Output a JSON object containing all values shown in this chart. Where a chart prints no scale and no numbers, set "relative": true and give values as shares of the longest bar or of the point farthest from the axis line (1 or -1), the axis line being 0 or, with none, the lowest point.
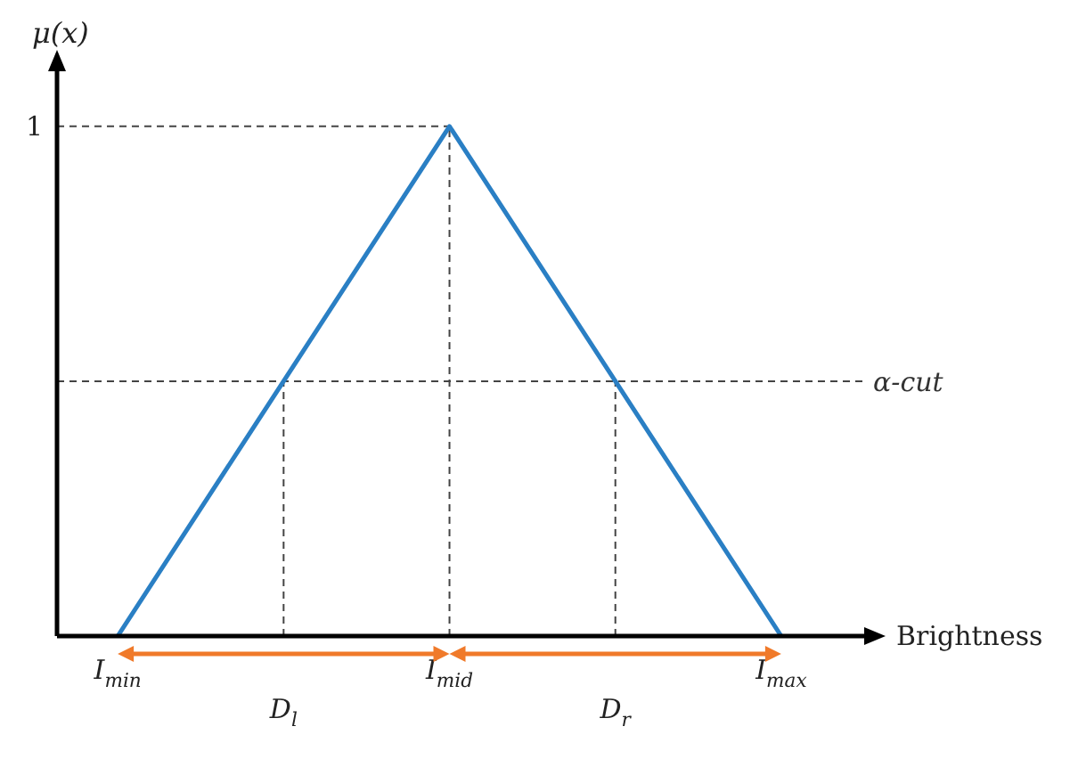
{
  "chart_data": {
    "type": "line",
    "relative": true,
    "xlabel": "Brightness",
    "ylabel": "μ(x)",
    "categories": [
      "I$_{min}$",
      "D$_{l}$",
      "I$_{mid}$",
      "D$_{r}$",
      "I$_{max}$"
    ],
    "series": [
      {
        "color": "#2a7fc4",
        "values": [
          0,
          0.5,
          1,
          0.5,
          0
        ]
      }
    ],
    "marker": "none",
    "line_style": "solid",
    "ref_lines": [
      {
        "axis": "y",
        "value": 0.5,
        "label": "α-cut",
        "line_style": "dashed",
        "color": "#444444"
      },
      {
        "axis": "y",
        "value": 1,
        "label": "1",
        "line_style": "dashed",
        "color": "#444444"
      },
      {
        "axis": "x",
        "value": "D$_{l}$",
        "line_style": "dashed",
        "color": "#444444"
      },
      {
        "axis": "x",
        "value": "I$_{mid}$",
        "line_style": "dashed",
        "color": "#444444"
      },
      {
        "axis": "x",
        "value": "D$_{r}$",
        "line_style": "dashed",
        "color": "#444444"
      }
    ]
  }
}
